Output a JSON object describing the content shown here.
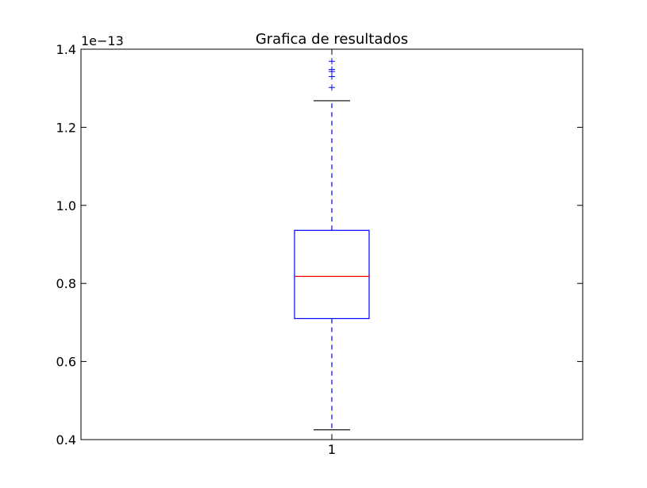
{
  "chart_data": {
    "type": "box",
    "title": "Grafica de resultados",
    "xlabel": "",
    "ylabel": "",
    "y_offset_label": "1e−13",
    "y_scale_factor": 1e-13,
    "ylim": [
      0.4,
      1.4
    ],
    "yticks": [
      0.4,
      0.6,
      0.8,
      1.0,
      1.2,
      1.4
    ],
    "ytick_labels": [
      "0.4",
      "0.6",
      "0.8",
      "1.0",
      "1.2",
      "1.4"
    ],
    "categories": [
      "1"
    ],
    "boxes": [
      {
        "category": "1",
        "whisker_low": 0.425,
        "q1": 0.71,
        "median": 0.818,
        "q3": 0.936,
        "whisker_high": 1.268,
        "outliers": [
          1.302,
          1.33,
          1.343,
          1.348,
          1.369
        ]
      }
    ],
    "colors": {
      "box": "#0000ff",
      "median": "#ff0000",
      "whisker_cap": "#000000",
      "outlier": "#0000ff"
    },
    "grid": false,
    "legend": "none"
  }
}
